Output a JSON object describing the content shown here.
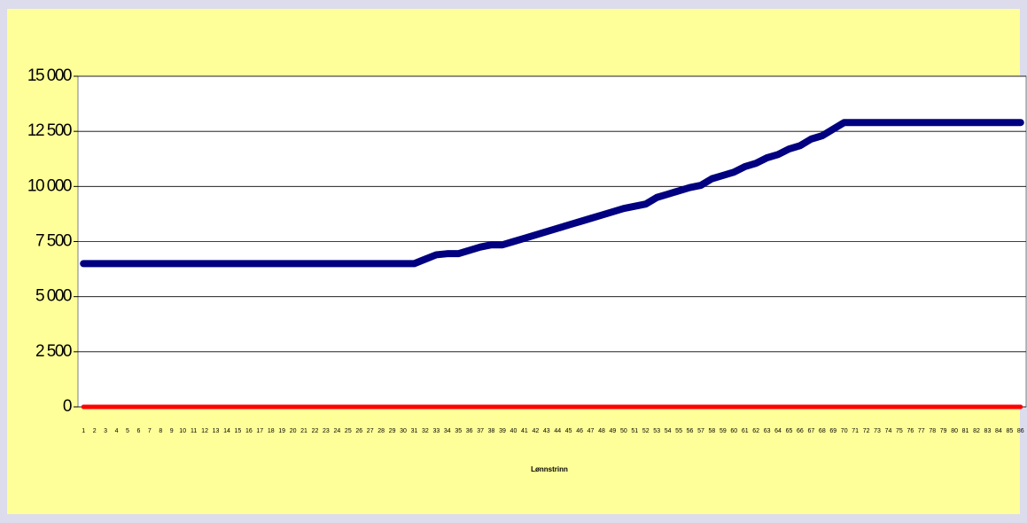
{
  "chart_data": {
    "type": "line",
    "x_label": "Lønnstrinn",
    "categories": [
      "1",
      "2",
      "3",
      "4",
      "5",
      "6",
      "7",
      "8",
      "9",
      "10",
      "11",
      "12",
      "13",
      "14",
      "15",
      "16",
      "17",
      "18",
      "19",
      "20",
      "21",
      "22",
      "23",
      "24",
      "25",
      "26",
      "27",
      "28",
      "29",
      "30",
      "31",
      "32",
      "33",
      "34",
      "35",
      "36",
      "37",
      "38",
      "39",
      "40",
      "41",
      "42",
      "43",
      "44",
      "45",
      "46",
      "47",
      "48",
      "49",
      "50",
      "51",
      "52",
      "53",
      "54",
      "55",
      "56",
      "57",
      "58",
      "59",
      "60",
      "61",
      "62",
      "63",
      "64",
      "65",
      "66",
      "67",
      "68",
      "69",
      "70",
      "71",
      "72",
      "73",
      "74",
      "75",
      "76",
      "77",
      "78",
      "79",
      "80",
      "81",
      "82",
      "83",
      "84",
      "85",
      "86"
    ],
    "series": [
      {
        "color": "#000080",
        "values": [
          6500,
          6500,
          6500,
          6500,
          6500,
          6500,
          6500,
          6500,
          6500,
          6500,
          6500,
          6500,
          6500,
          6500,
          6500,
          6500,
          6500,
          6500,
          6500,
          6500,
          6500,
          6500,
          6500,
          6500,
          6500,
          6500,
          6500,
          6500,
          6500,
          6500,
          6500,
          6700,
          6900,
          6950,
          6950,
          7100,
          7250,
          7350,
          7350,
          7500,
          7650,
          7800,
          7950,
          8100,
          8250,
          8400,
          8550,
          8700,
          8850,
          9000,
          9100,
          9200,
          9500,
          9650,
          9800,
          9950,
          10050,
          10350,
          10500,
          10650,
          10900,
          11050,
          11300,
          11450,
          11700,
          11850,
          12150,
          12300,
          12600,
          12900,
          12900,
          12900,
          12900,
          12900,
          12900,
          12900,
          12900,
          12900,
          12900,
          12900,
          12900,
          12900,
          12900,
          12900,
          12900,
          12900
        ]
      },
      {
        "color": "#ff0000",
        "values": [
          0,
          0,
          0,
          0,
          0,
          0,
          0,
          0,
          0,
          0,
          0,
          0,
          0,
          0,
          0,
          0,
          0,
          0,
          0,
          0,
          0,
          0,
          0,
          0,
          0,
          0,
          0,
          0,
          0,
          0,
          0,
          0,
          0,
          0,
          0,
          0,
          0,
          0,
          0,
          0,
          0,
          0,
          0,
          0,
          0,
          0,
          0,
          0,
          0,
          0,
          0,
          0,
          0,
          0,
          0,
          0,
          0,
          0,
          0,
          0,
          0,
          0,
          0,
          0,
          0,
          0,
          0,
          0,
          0,
          0,
          0,
          0,
          0,
          0,
          0,
          0,
          0,
          0,
          0,
          0,
          0,
          0,
          0,
          0,
          0,
          0
        ]
      }
    ],
    "ylim": [
      0,
      15000
    ],
    "yticks": [
      0,
      {
        "value": 2500,
        "label": "2 500"
      },
      {
        "value": 5000,
        "label": "5 000"
      },
      {
        "value": 7500,
        "label": "7 500"
      },
      {
        "value": 10000,
        "label": "10 000"
      },
      {
        "value": 12500,
        "label": "12 500"
      },
      {
        "value": 15000,
        "label": "15 000"
      }
    ],
    "grid": true
  }
}
